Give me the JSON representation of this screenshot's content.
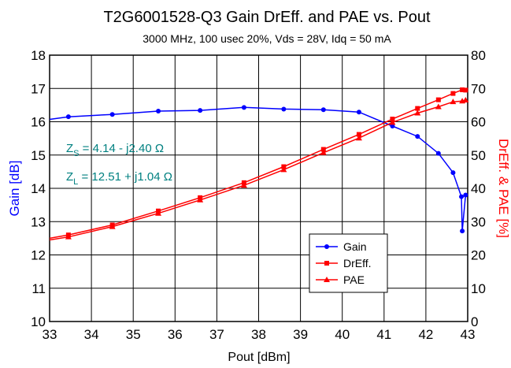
{
  "chart_data": {
    "type": "line",
    "title": "T2G6001528-Q3 Gain DrEff. and PAE vs. Pout",
    "subtitle": "3000 MHz, 100 usec 20%, Vds = 28V, Idq = 50 mA",
    "xlabel": "Pout [dBm]",
    "ylabel_left": "Gain [dB]",
    "ylabel_right": "DrEff. & PAE [%]",
    "xlim": [
      33,
      43
    ],
    "ylim_left": [
      10,
      18
    ],
    "ylim_right": [
      0,
      80
    ],
    "grid": true,
    "legend_position": "bottom-right",
    "x_ticks": [
      33,
      34,
      35,
      36,
      37,
      38,
      39,
      40,
      41,
      42,
      43
    ],
    "y_left_ticks": [
      10,
      11,
      12,
      13,
      14,
      15,
      16,
      17,
      18
    ],
    "y_right_ticks": [
      0,
      10,
      20,
      30,
      40,
      50,
      60,
      70,
      80
    ],
    "annotations": {
      "zs": {
        "prefix": "Z",
        "sub": "S",
        "text": " =  4.14 - j2.40  Ω"
      },
      "zl": {
        "prefix": "Z",
        "sub": "L",
        "text": " = 12.51 + j1.04  Ω"
      },
      "color": "#008080"
    },
    "series": [
      {
        "name": "Gain",
        "axis": "left",
        "color": "#0000ff",
        "marker": "circle",
        "points": [
          [
            33.0,
            16.07
          ],
          [
            33.45,
            16.15
          ],
          [
            34.5,
            16.22
          ],
          [
            35.6,
            16.32
          ],
          [
            36.6,
            16.34
          ],
          [
            37.65,
            16.43
          ],
          [
            38.6,
            16.38
          ],
          [
            39.55,
            16.36
          ],
          [
            40.4,
            16.29
          ],
          [
            41.2,
            15.87
          ],
          [
            41.8,
            15.56
          ],
          [
            42.3,
            15.05
          ],
          [
            42.65,
            14.47
          ],
          [
            42.85,
            13.75
          ],
          [
            42.87,
            12.72
          ],
          [
            42.95,
            13.8
          ]
        ]
      },
      {
        "name": "DrEff.",
        "axis": "right",
        "color": "#ff0000",
        "marker": "square",
        "points": [
          [
            33.0,
            25.0
          ],
          [
            33.45,
            26.0
          ],
          [
            34.5,
            29.0
          ],
          [
            35.6,
            33.2
          ],
          [
            36.6,
            37.2
          ],
          [
            37.65,
            41.7
          ],
          [
            38.6,
            46.5
          ],
          [
            39.55,
            51.7
          ],
          [
            40.4,
            56.2
          ],
          [
            41.2,
            60.8
          ],
          [
            41.8,
            64.0
          ],
          [
            42.3,
            66.6
          ],
          [
            42.65,
            68.5
          ],
          [
            42.87,
            69.6
          ],
          [
            42.95,
            69.5
          ]
        ]
      },
      {
        "name": "PAE",
        "axis": "right",
        "color": "#ff0000",
        "marker": "triangle",
        "points": [
          [
            33.0,
            24.5
          ],
          [
            33.45,
            25.4
          ],
          [
            34.5,
            28.5
          ],
          [
            35.6,
            32.5
          ],
          [
            36.6,
            36.5
          ],
          [
            37.65,
            40.9
          ],
          [
            38.6,
            45.6
          ],
          [
            39.55,
            50.7
          ],
          [
            40.4,
            55.1
          ],
          [
            41.2,
            59.8
          ],
          [
            41.8,
            62.6
          ],
          [
            42.3,
            64.5
          ],
          [
            42.65,
            66.0
          ],
          [
            42.87,
            66.2
          ],
          [
            42.95,
            66.5
          ]
        ]
      }
    ]
  }
}
